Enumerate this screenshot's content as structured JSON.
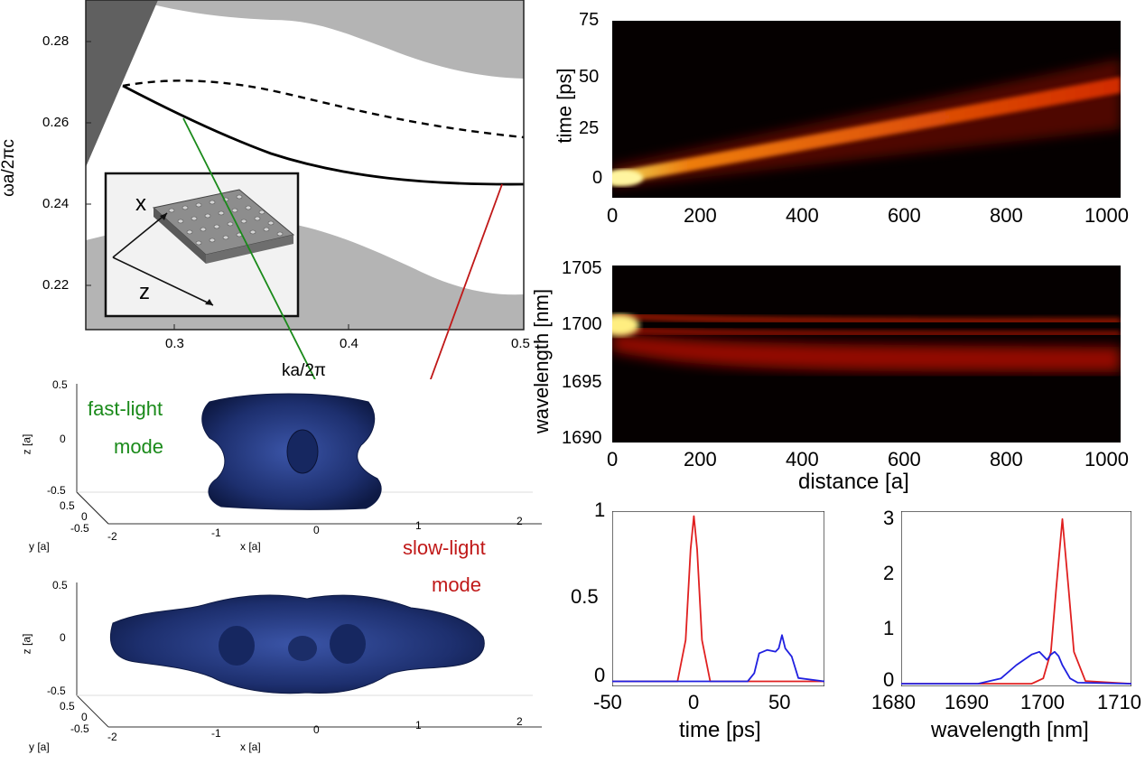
{
  "colors": {
    "green": "#1a8a1a",
    "red": "#c01818",
    "band_gray": "#b4b4b4",
    "light_cone": "#606060",
    "heat_bg": "#050000",
    "pulse_in": "#e02020",
    "pulse_out": "#2020e0",
    "mode_blue": "#1d2f6e"
  },
  "band_diagram": {
    "xlabel": "ka/2π",
    "ylabel": "ωa/2πc",
    "xticks": [
      "0.3",
      "0.4",
      "0.5"
    ],
    "yticks": [
      "0.28",
      "0.26",
      "0.24",
      "0.22"
    ],
    "inset_x": "x",
    "inset_z": "z"
  },
  "modes": {
    "fast_label_1": "fast-light",
    "fast_label_2": "mode",
    "slow_label_1": "slow-light",
    "slow_label_2": "mode",
    "z_ticks": [
      "0.5",
      "0",
      "-0.5"
    ],
    "y_ticks": [
      "0.5",
      "0",
      "-0.5"
    ],
    "x_ticks": [
      "-2",
      "-1",
      "0",
      "1",
      "2"
    ],
    "z_axis": "z [a]",
    "y_axis": "y [a]",
    "x_axis": "x [a]"
  },
  "chart_data": [
    {
      "type": "line",
      "title": "",
      "xlabel": "ka/2π",
      "ylabel": "ωa/2πc",
      "xlim": [
        0.25,
        0.5
      ],
      "ylim": [
        0.208,
        0.289
      ],
      "series": [
        {
          "x": [
            0.27,
            0.3,
            0.35,
            0.4,
            0.45,
            0.5
          ],
          "values": [
            0.27,
            0.2635,
            0.255,
            0.249,
            0.2455,
            0.245
          ],
          "style": "solid"
        },
        {
          "x": [
            0.27,
            0.3,
            0.35,
            0.4,
            0.45,
            0.5
          ],
          "values": [
            0.27,
            0.2702,
            0.2685,
            0.264,
            0.2595,
            0.257
          ],
          "style": "dashed"
        }
      ]
    },
    {
      "type": "heatmap",
      "xlabel": "",
      "ylabel": "time [ps]",
      "xticks": [
        "0",
        "200",
        "400",
        "600",
        "800",
        "1000"
      ],
      "yticks": [
        "75",
        "50",
        "25",
        "0"
      ],
      "xlim": [
        0,
        1000
      ],
      "ylim": [
        -8,
        75
      ]
    },
    {
      "type": "heatmap",
      "xlabel": "distance [a]",
      "ylabel": "wavelength [nm]",
      "xticks": [
        "0",
        "200",
        "400",
        "600",
        "800",
        "1000"
      ],
      "yticks": [
        "1705",
        "1700",
        "1695",
        "1690"
      ],
      "xlim": [
        0,
        1000
      ],
      "ylim": [
        1690,
        1705
      ]
    },
    {
      "type": "line",
      "xlabel": "time [ps]",
      "ylabel": "",
      "xticks": [
        "-50",
        "0",
        "50"
      ],
      "yticks": [
        "1",
        "0.5",
        "0"
      ],
      "xlim": [
        -50,
        80
      ],
      "ylim": [
        -0.03,
        1.03
      ],
      "series": [
        {
          "x": [
            -50,
            -10,
            -5,
            -2,
            0,
            2,
            5,
            10,
            80
          ],
          "values": [
            0,
            0.0,
            0.25,
            0.8,
            1.0,
            0.8,
            0.25,
            0.0,
            0
          ]
        },
        {
          "x": [
            -50,
            33,
            37,
            40,
            45,
            50,
            52,
            54,
            56,
            60,
            64,
            80
          ],
          "values": [
            0,
            0,
            0.05,
            0.17,
            0.19,
            0.18,
            0.2,
            0.28,
            0.2,
            0.15,
            0.02,
            0
          ]
        }
      ]
    },
    {
      "type": "line",
      "xlabel": "wavelength [nm]",
      "ylabel": "",
      "xticks": [
        "1680",
        "1690",
        "1700",
        "1710"
      ],
      "yticks": [
        "3",
        "2",
        "1",
        "0"
      ],
      "xlim": [
        1680,
        1710
      ],
      "ylim": [
        -0.05,
        3.25
      ],
      "series": [
        {
          "x": [
            1680,
            1697,
            1698.5,
            1699.5,
            1700.2,
            1701,
            1701.8,
            1702.5,
            1704,
            1710
          ],
          "values": [
            0,
            0,
            0.1,
            0.6,
            1.8,
            3.1,
            1.8,
            0.6,
            0.05,
            0
          ]
        },
        {
          "x": [
            1680,
            1690,
            1693,
            1695,
            1697,
            1698,
            1699,
            1699.5,
            1700,
            1700.5,
            1701,
            1702,
            1703,
            1710
          ],
          "values": [
            0,
            0,
            0.1,
            0.35,
            0.55,
            0.6,
            0.45,
            0.55,
            0.6,
            0.52,
            0.35,
            0.1,
            0.02,
            0
          ]
        }
      ]
    }
  ]
}
